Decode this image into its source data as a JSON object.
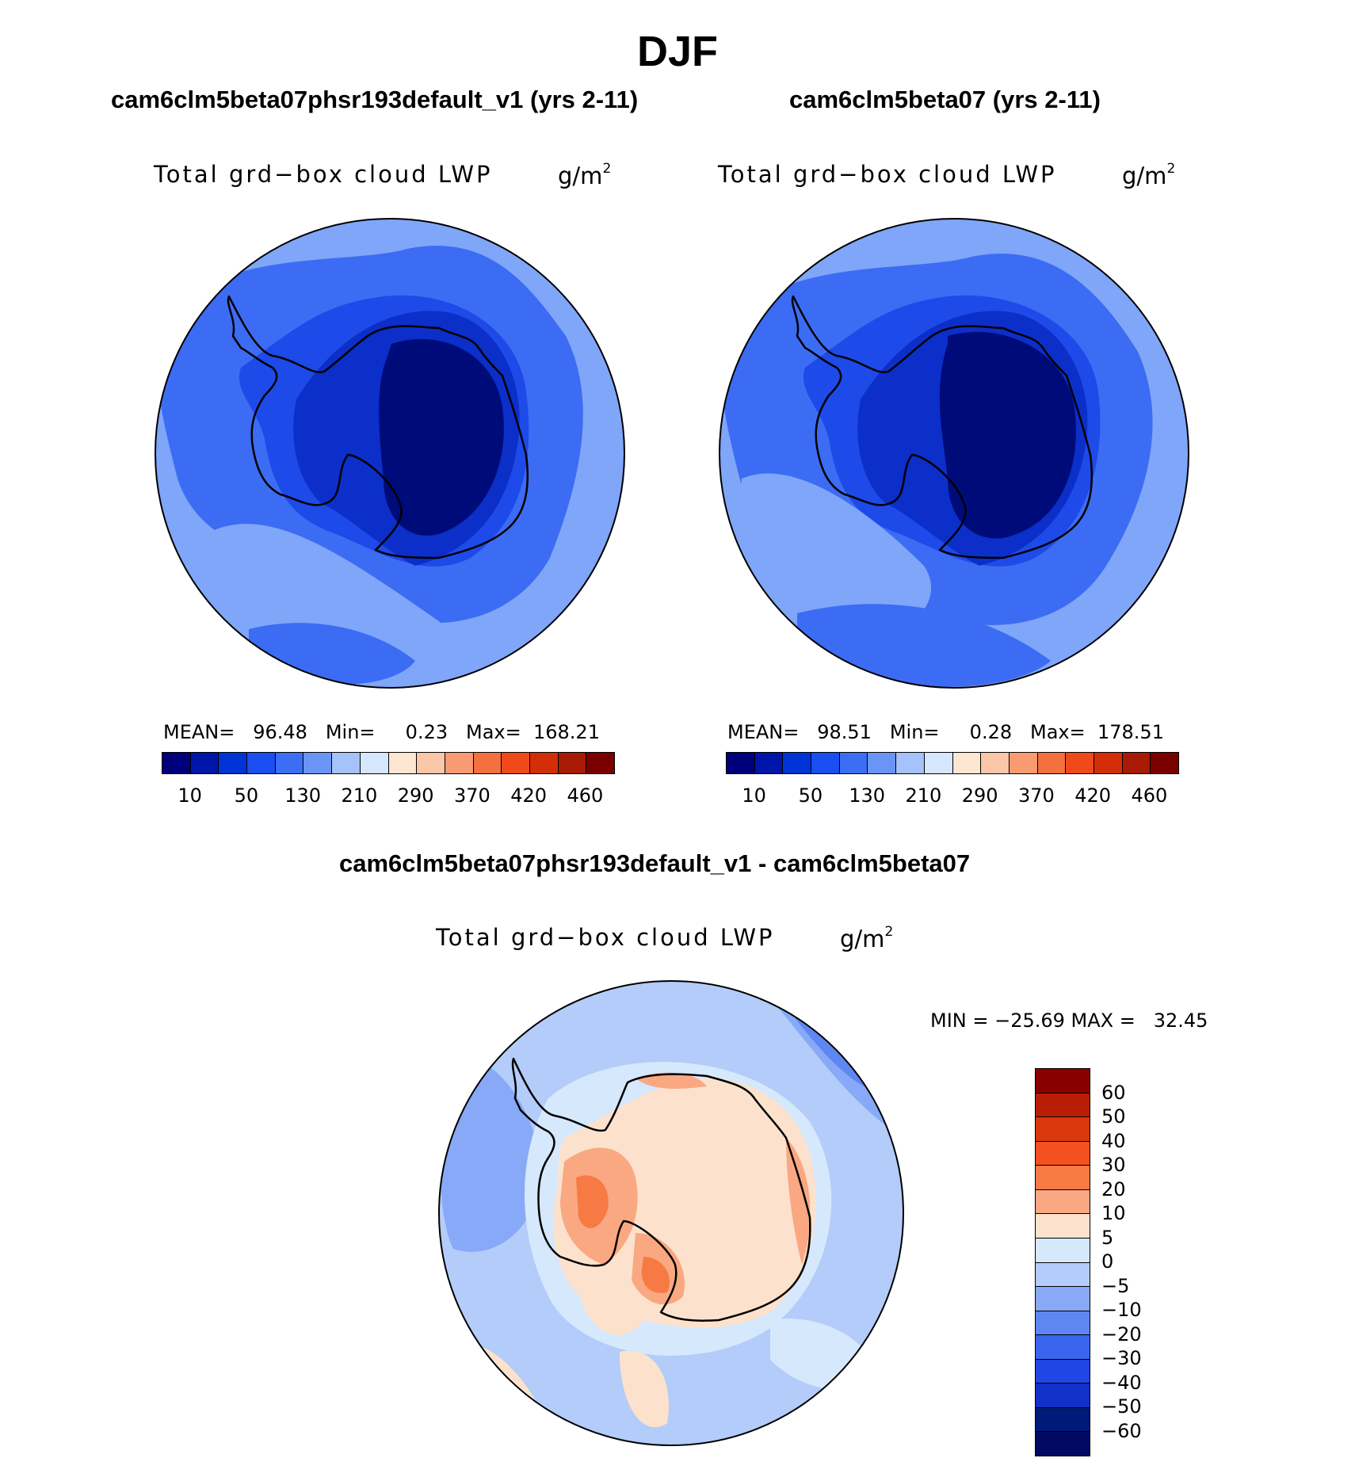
{
  "header": {
    "season": "DJF"
  },
  "panels": {
    "left": {
      "case_title": "cam6clm5beta07phsr193default_v1 (yrs 2-11)",
      "variable": "Total grd−box cloud LWP",
      "units_base": "g/m",
      "units_exp": "2",
      "stats": "MEAN=   96.48   Min=     0.23   Max=  168.21"
    },
    "right": {
      "case_title": "cam6clm5beta07 (yrs 2-11)",
      "variable": "Total grd−box cloud LWP",
      "units_base": "g/m",
      "units_exp": "2",
      "stats": "MEAN=   98.51   Min=     0.28   Max=  178.51"
    },
    "diff": {
      "case_title": "cam6clm5beta07phsr193default_v1 - cam6clm5beta07",
      "variable": "Total grd−box cloud LWP",
      "units_base": "g/m",
      "units_exp": "2",
      "stats": "MIN = −25.69 MAX =   32.45"
    }
  },
  "colorbar_abs": {
    "labels": [
      "10",
      "50",
      "130",
      "210",
      "290",
      "370",
      "420",
      "460"
    ],
    "colors": [
      "#00007a",
      "#0016a8",
      "#0033d6",
      "#1a4ef0",
      "#3b6ef5",
      "#6a95f7",
      "#a6c2fa",
      "#d6e6fc",
      "#fde6d2",
      "#fcc6a8",
      "#f99a72",
      "#f5703f",
      "#f04a1a",
      "#d42e08",
      "#a81a03",
      "#7a0000"
    ]
  },
  "colorbar_diff": {
    "labels": [
      "60",
      "50",
      "40",
      "30",
      "20",
      "10",
      "5",
      "0",
      "−5",
      "−10",
      "−20",
      "−30",
      "−40",
      "−50",
      "−60"
    ],
    "colors": [
      "#8a0000",
      "#b81e05",
      "#d9380d",
      "#f5501f",
      "#f77a45",
      "#f9a882",
      "#fce2cc",
      "#d6e8fc",
      "#b3ccfa",
      "#87a9f7",
      "#5e87f2",
      "#3a66ee",
      "#2046e6",
      "#1330c8",
      "#001a7a",
      "#000a60"
    ]
  },
  "map_colors": {
    "land_line": "#000000",
    "outer": "#7fa6f8",
    "mid": "#3c6cf3",
    "inner1": "#1d4ae8",
    "inner2": "#0b2fc8",
    "core": "#000b7a",
    "diff_base": "#b3ccfa",
    "diff_light": "#d6e8fc",
    "diff_pos": "#fce2cc",
    "diff_pos2": "#f9a882",
    "diff_pos3": "#f77a45",
    "diff_neg": "#87a9f7",
    "diff_neg2": "#5e87f2"
  }
}
